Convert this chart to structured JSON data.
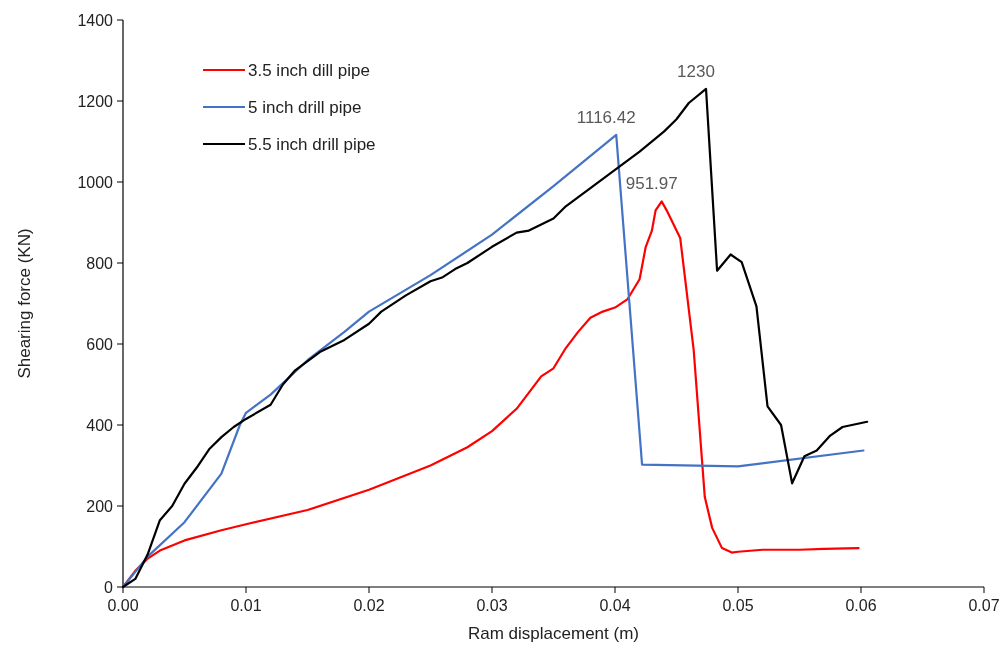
{
  "chart_data": {
    "type": "line",
    "xlabel": "Ram displacement (m)",
    "ylabel": "Shearing force (KN)",
    "xlim": [
      0,
      0.07
    ],
    "xticks": [
      {
        "value": 0,
        "label": "0.00"
      },
      {
        "value": 0.01,
        "label": "0.01"
      },
      {
        "value": 0.02,
        "label": "0.02"
      },
      {
        "value": 0.03,
        "label": "0.03"
      },
      {
        "value": 0.04,
        "label": "0.04"
      },
      {
        "value": 0.05,
        "label": "0.05"
      },
      {
        "value": 0.06,
        "label": "0.06"
      },
      {
        "value": 0.07,
        "label": "0.07"
      }
    ],
    "ylim": [
      0,
      1400
    ],
    "yticks": [
      0,
      200,
      400,
      600,
      800,
      1000,
      1200,
      1400
    ],
    "grid": false,
    "legend": "top left",
    "marker": "none",
    "line_style": "solid",
    "series": [
      {
        "name": "3.5 inch dill pipe",
        "color": "#ff0000",
        "x": [
          0,
          0.001,
          0.002,
          0.003,
          0.005,
          0.008,
          0.01,
          0.015,
          0.02,
          0.025,
          0.028,
          0.03,
          0.032,
          0.034,
          0.035,
          0.036,
          0.037,
          0.038,
          0.039,
          0.04,
          0.041,
          0.042,
          0.0425,
          0.043,
          0.0433,
          0.0438,
          0.0442,
          0.0453,
          0.0464,
          0.0473,
          0.0479,
          0.0487,
          0.0495,
          0.05,
          0.052,
          0.055,
          0.057,
          0.0598
        ],
        "values": [
          0,
          40,
          70,
          90,
          115,
          140,
          155,
          190,
          240,
          300,
          345,
          385,
          440,
          520,
          540,
          590,
          630,
          665,
          680,
          690,
          710,
          760,
          840,
          880,
          930,
          951.97,
          930,
          862,
          584,
          222,
          146,
          96,
          85,
          87,
          92,
          92,
          94,
          96
        ]
      },
      {
        "name": "5 inch drill pipe",
        "color": "#4472c4",
        "x": [
          0,
          0.002,
          0.005,
          0.008,
          0.0095,
          0.01,
          0.012,
          0.015,
          0.018,
          0.02,
          0.025,
          0.03,
          0.035,
          0.0401,
          0.0422,
          0.05,
          0.0602
        ],
        "values": [
          0,
          75,
          160,
          280,
          400,
          430,
          475,
          560,
          630,
          680,
          770,
          870,
          990,
          1116.42,
          302,
          298,
          337
        ]
      },
      {
        "name": "5.5 inch drill pipe",
        "color": "#000000",
        "x": [
          0,
          0.001,
          0.002,
          0.003,
          0.004,
          0.005,
          0.006,
          0.007,
          0.008,
          0.009,
          0.01,
          0.012,
          0.013,
          0.014,
          0.016,
          0.018,
          0.02,
          0.021,
          0.023,
          0.025,
          0.026,
          0.027,
          0.028,
          0.03,
          0.032,
          0.033,
          0.034,
          0.035,
          0.036,
          0.038,
          0.04,
          0.042,
          0.044,
          0.045,
          0.046,
          0.0474,
          0.0483,
          0.0494,
          0.0503,
          0.0515,
          0.0524,
          0.0535,
          0.0544,
          0.0554,
          0.0564,
          0.0575,
          0.0585,
          0.0605
        ],
        "values": [
          0,
          20,
          80,
          165,
          200,
          255,
          295,
          340,
          370,
          395,
          415,
          450,
          500,
          535,
          580,
          610,
          650,
          680,
          720,
          755,
          765,
          785,
          800,
          840,
          875,
          880,
          895,
          910,
          940,
          985,
          1030,
          1075,
          1125,
          1155,
          1195,
          1230,
          781,
          821,
          802,
          693,
          446,
          400,
          256,
          323,
          337,
          374,
          395,
          408
        ]
      }
    ],
    "annotations": [
      {
        "text": "1116.42",
        "x": 0.0401,
        "y": 1116.42
      },
      {
        "text": "951.97",
        "x": 0.0438,
        "y": 951.97
      },
      {
        "text": "1230",
        "x": 0.0474,
        "y": 1230
      }
    ]
  }
}
